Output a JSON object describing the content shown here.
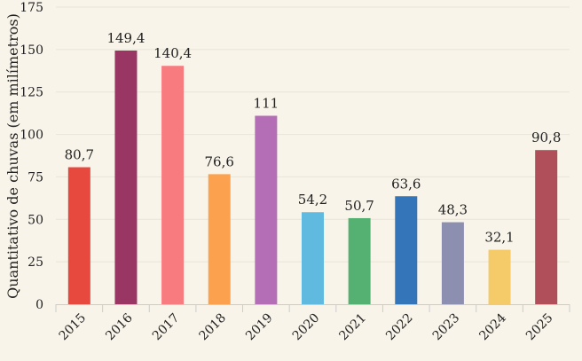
{
  "chart_data": {
    "type": "bar",
    "title": "",
    "xlabel": "",
    "ylabel": "Quantitativo de chuvas (em milímetros)",
    "ylim": [
      0,
      175
    ],
    "yticks": [
      0,
      25,
      50,
      75,
      100,
      125,
      150,
      175
    ],
    "grid": true,
    "categories": [
      "2015",
      "2016",
      "2017",
      "2018",
      "2019",
      "2020",
      "2021",
      "2022",
      "2023",
      "2024",
      "2025"
    ],
    "values": [
      80.7,
      149.4,
      140.4,
      76.6,
      111,
      54.2,
      50.7,
      63.6,
      48.3,
      32.1,
      90.8
    ],
    "data_labels": [
      "80,7",
      "149,4",
      "140,4",
      "76,6",
      "111",
      "54,2",
      "50,7",
      "63,6",
      "48,3",
      "32,1",
      "90,8"
    ],
    "colors": [
      "#e8493f",
      "#9a3664",
      "#f87b80",
      "#fca24f",
      "#b46eb5",
      "#60b9df",
      "#54b171",
      "#3375b8",
      "#8d8fb0",
      "#f5cb6a",
      "#b04f5a"
    ]
  }
}
